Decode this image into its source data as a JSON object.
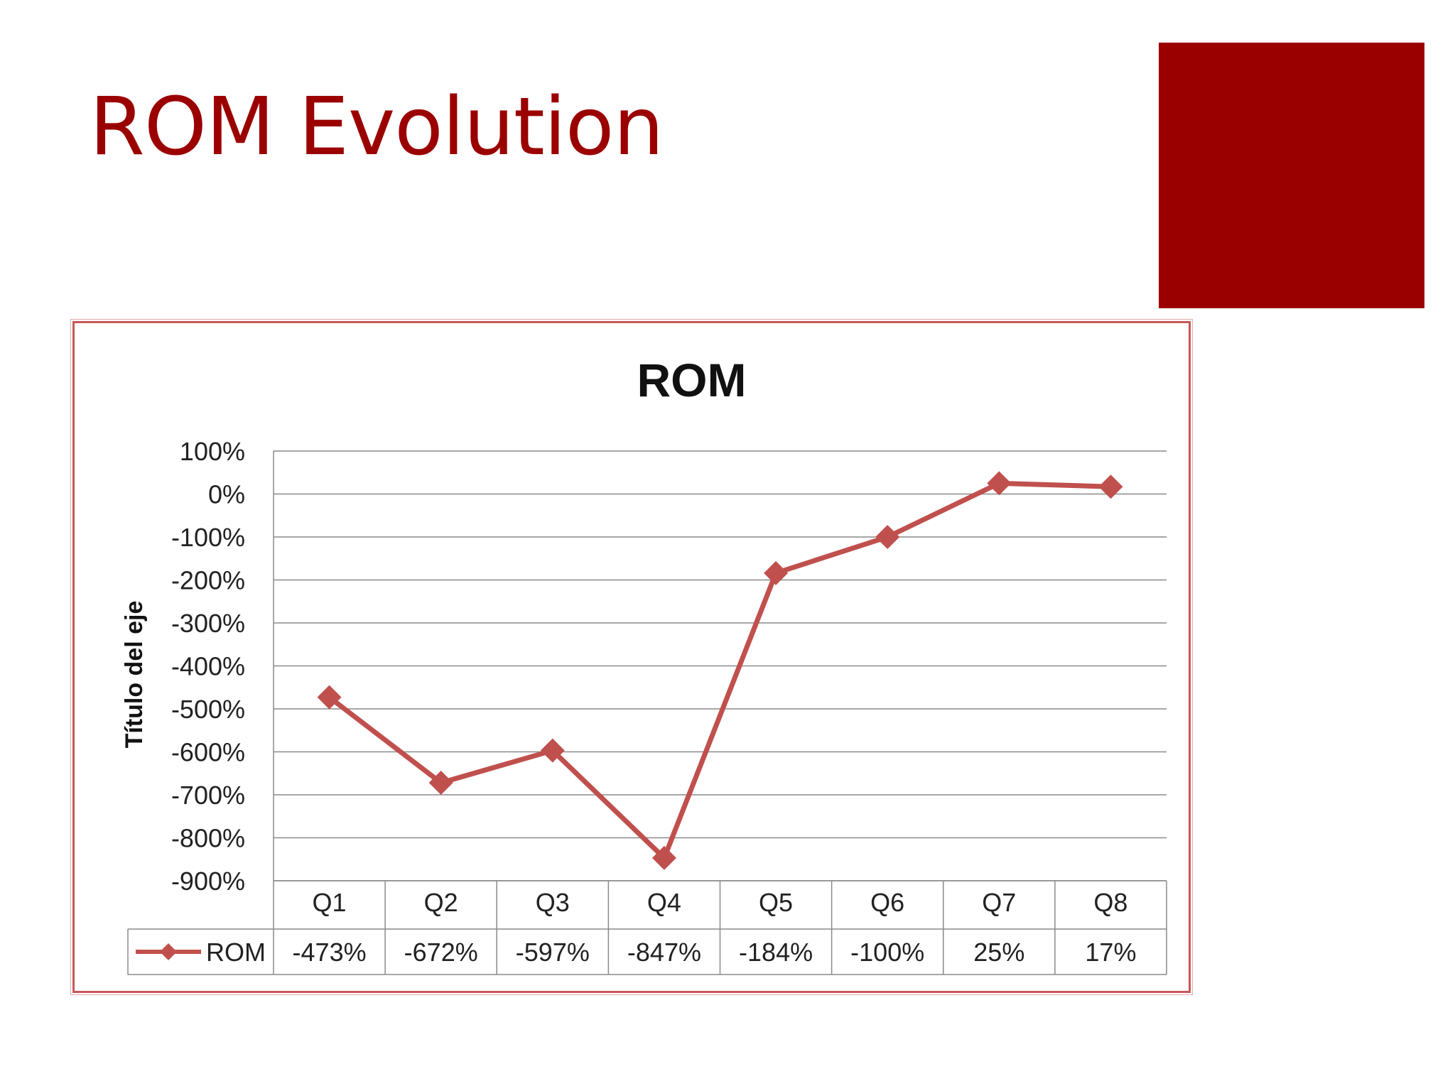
{
  "slide": {
    "title": "ROM Evolution",
    "accent_color": "#9b0000"
  },
  "chart_data": {
    "type": "line",
    "title": "ROM",
    "ylabel": "Título del eje",
    "xlabel": "",
    "categories": [
      "Q1",
      "Q2",
      "Q3",
      "Q4",
      "Q5",
      "Q6",
      "Q7",
      "Q8"
    ],
    "series": [
      {
        "name": "ROM",
        "values": [
          -473,
          -672,
          -597,
          -847,
          -184,
          -100,
          25,
          17
        ],
        "color": "#c0504d",
        "marker": "diamond"
      }
    ],
    "data_table": [
      "-473%",
      "-672%",
      "-597%",
      "-847%",
      "-184%",
      "-100%",
      "25%",
      "17%"
    ],
    "ylim": [
      -900,
      100
    ],
    "yticks": [
      100,
      0,
      -100,
      -200,
      -300,
      -400,
      -500,
      -600,
      -700,
      -800,
      -900
    ],
    "ytick_labels": [
      "100%",
      "0%",
      "-100%",
      "-200%",
      "-300%",
      "-400%",
      "-500%",
      "-600%",
      "-700%",
      "-800%",
      "-900%"
    ],
    "grid": true,
    "legend": "data-table"
  }
}
